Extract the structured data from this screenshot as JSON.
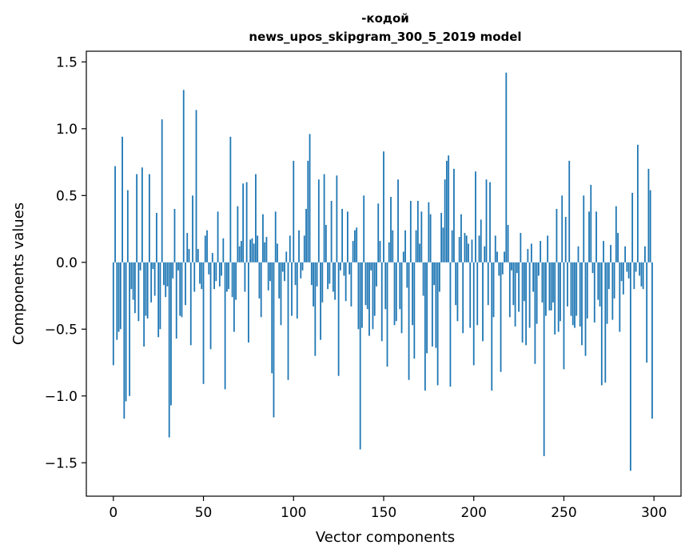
{
  "chart_data": {
    "type": "bar",
    "title": "-кодой",
    "subtitle": "news_upos_skipgram_300_5_2019 model",
    "xlabel": "Vector components",
    "ylabel": "Components values",
    "xlim": [
      -15,
      315
    ],
    "ylim": [
      -1.75,
      1.58
    ],
    "xticks": [
      0,
      50,
      100,
      150,
      200,
      250,
      300
    ],
    "xtick_labels": [
      "0",
      "50",
      "100",
      "150",
      "200",
      "250",
      "300"
    ],
    "yticks": [
      -1.5,
      -1.0,
      -0.5,
      0.0,
      0.5,
      1.0,
      1.5
    ],
    "ytick_labels": [
      "−1.5",
      "−1.0",
      "−0.5",
      "0.0",
      "0.5",
      "1.0",
      "1.5"
    ],
    "grid": false,
    "bar_color": "#1f77b4",
    "x": [
      0,
      1,
      2,
      3,
      4,
      5,
      6,
      7,
      8,
      9,
      10,
      11,
      12,
      13,
      14,
      15,
      16,
      17,
      18,
      19,
      20,
      21,
      22,
      23,
      24,
      25,
      26,
      27,
      28,
      29,
      30,
      31,
      32,
      33,
      34,
      35,
      36,
      37,
      38,
      39,
      40,
      41,
      42,
      43,
      44,
      45,
      46,
      47,
      48,
      49,
      50,
      51,
      52,
      53,
      54,
      55,
      56,
      57,
      58,
      59,
      60,
      61,
      62,
      63,
      64,
      65,
      66,
      67,
      68,
      69,
      70,
      71,
      72,
      73,
      74,
      75,
      76,
      77,
      78,
      79,
      80,
      81,
      82,
      83,
      84,
      85,
      86,
      87,
      88,
      89,
      90,
      91,
      92,
      93,
      94,
      95,
      96,
      97,
      98,
      99,
      100,
      101,
      102,
      103,
      104,
      105,
      106,
      107,
      108,
      109,
      110,
      111,
      112,
      113,
      114,
      115,
      116,
      117,
      118,
      119,
      120,
      121,
      122,
      123,
      124,
      125,
      126,
      127,
      128,
      129,
      130,
      131,
      132,
      133,
      134,
      135,
      136,
      137,
      138,
      139,
      140,
      141,
      142,
      143,
      144,
      145,
      146,
      147,
      148,
      149,
      150,
      151,
      152,
      153,
      154,
      155,
      156,
      157,
      158,
      159,
      160,
      161,
      162,
      163,
      164,
      165,
      166,
      167,
      168,
      169,
      170,
      171,
      172,
      173,
      174,
      175,
      176,
      177,
      178,
      179,
      180,
      181,
      182,
      183,
      184,
      185,
      186,
      187,
      188,
      189,
      190,
      191,
      192,
      193,
      194,
      195,
      196,
      197,
      198,
      199,
      200,
      201,
      202,
      203,
      204,
      205,
      206,
      207,
      208,
      209,
      210,
      211,
      212,
      213,
      214,
      215,
      216,
      217,
      218,
      219,
      220,
      221,
      222,
      223,
      224,
      225,
      226,
      227,
      228,
      229,
      230,
      231,
      232,
      233,
      234,
      235,
      236,
      237,
      238,
      239,
      240,
      241,
      242,
      243,
      244,
      245,
      246,
      247,
      248,
      249,
      250,
      251,
      252,
      253,
      254,
      255,
      256,
      257,
      258,
      259,
      260,
      261,
      262,
      263,
      264,
      265,
      266,
      267,
      268,
      269,
      270,
      271,
      272,
      273,
      274,
      275,
      276,
      277,
      278,
      279,
      280,
      281,
      282,
      283,
      284,
      285,
      286,
      287,
      288,
      289,
      290,
      291,
      292,
      293,
      294,
      295,
      296,
      297,
      298,
      299
    ],
    "values": [
      -0.77,
      0.72,
      -0.58,
      -0.52,
      -0.5,
      0.94,
      -1.17,
      -1.04,
      0.54,
      -1.0,
      -0.2,
      -0.28,
      -0.38,
      0.66,
      -0.44,
      -0.06,
      0.71,
      -0.63,
      -0.4,
      -0.42,
      0.66,
      -0.3,
      -0.05,
      -0.25,
      0.37,
      -0.56,
      -0.5,
      1.07,
      -0.17,
      -0.26,
      -0.18,
      -1.31,
      -1.07,
      -0.12,
      0.4,
      -0.57,
      -0.06,
      -0.4,
      -0.41,
      1.29,
      -0.32,
      0.22,
      0.1,
      -0.62,
      0.5,
      -0.22,
      1.14,
      0.1,
      -0.16,
      -0.2,
      -0.91,
      0.2,
      0.24,
      -0.09,
      -0.65,
      0.07,
      -0.2,
      -0.14,
      0.38,
      -0.18,
      -0.1,
      0.18,
      -0.95,
      -0.22,
      -0.2,
      0.94,
      -0.26,
      -0.52,
      -0.28,
      0.42,
      0.12,
      0.16,
      0.59,
      -0.22,
      0.6,
      -0.6,
      0.17,
      0.18,
      0.14,
      0.66,
      0.2,
      -0.27,
      -0.41,
      0.36,
      0.15,
      0.19,
      -0.21,
      -0.14,
      -0.83,
      -1.16,
      0.38,
      0.14,
      -0.27,
      -0.47,
      -0.07,
      -0.14,
      0.08,
      -0.88,
      0.2,
      -0.4,
      0.76,
      -0.17,
      -0.42,
      0.24,
      -0.12,
      -0.06,
      0.2,
      0.4,
      0.76,
      0.96,
      -0.17,
      -0.33,
      -0.7,
      -0.18,
      0.62,
      -0.58,
      -0.3,
      0.66,
      0.28,
      -0.2,
      -0.16,
      0.46,
      -0.22,
      -0.28,
      0.65,
      -0.85,
      -0.06,
      0.4,
      -0.1,
      -0.29,
      0.38,
      -0.09,
      -0.33,
      0.16,
      0.24,
      0.26,
      -0.5,
      -1.4,
      -0.49,
      0.5,
      -0.32,
      -0.35,
      -0.55,
      -0.06,
      -0.5,
      -0.4,
      -0.18,
      0.44,
      0.16,
      -0.59,
      0.83,
      -0.35,
      -0.78,
      0.15,
      0.49,
      0.24,
      -0.47,
      -0.44,
      0.62,
      -0.35,
      -0.53,
      0.08,
      0.24,
      -0.19,
      -0.88,
      0.46,
      -0.47,
      -0.72,
      0.24,
      0.46,
      0.14,
      0.38,
      -0.25,
      -0.96,
      -0.68,
      0.45,
      0.36,
      -0.63,
      -0.17,
      -0.64,
      -0.92,
      -0.22,
      0.37,
      0.26,
      0.62,
      0.76,
      0.8,
      -0.93,
      0.24,
      0.7,
      -0.32,
      -0.44,
      0.19,
      0.36,
      -0.53,
      0.22,
      0.2,
      0.14,
      -0.49,
      0.17,
      -0.77,
      0.68,
      -0.47,
      0.2,
      0.32,
      -0.59,
      0.12,
      0.62,
      -0.32,
      0.6,
      -0.96,
      -0.41,
      0.2,
      0.08,
      -0.1,
      -0.82,
      -0.09,
      0.08,
      1.42,
      0.28,
      -0.41,
      -0.06,
      -0.32,
      -0.48,
      -0.08,
      -0.37,
      0.22,
      -0.6,
      -0.29,
      -0.62,
      0.1,
      -0.49,
      0.14,
      -0.22,
      -0.76,
      -0.46,
      -0.1,
      0.16,
      -0.3,
      -1.45,
      -0.4,
      0.2,
      -0.36,
      -0.36,
      -0.3,
      -0.54,
      0.4,
      -0.52,
      -0.44,
      0.5,
      -0.8,
      0.34,
      -0.33,
      0.76,
      -0.4,
      -0.47,
      -0.49,
      -0.4,
      0.12,
      -0.48,
      -0.62,
      0.5,
      -0.7,
      -0.42,
      0.38,
      0.58,
      -0.08,
      -0.45,
      0.38,
      -0.28,
      -0.33,
      -0.92,
      0.16,
      -0.9,
      -0.46,
      -0.2,
      0.13,
      -0.43,
      -0.27,
      0.42,
      0.22,
      -0.52,
      -0.14,
      -0.24,
      0.12,
      -0.07,
      -0.12,
      -1.56,
      0.52,
      -0.2,
      -0.07,
      0.88,
      -0.1,
      -0.18,
      -0.2,
      0.12,
      -0.75,
      0.7,
      0.54,
      -1.17
    ]
  }
}
